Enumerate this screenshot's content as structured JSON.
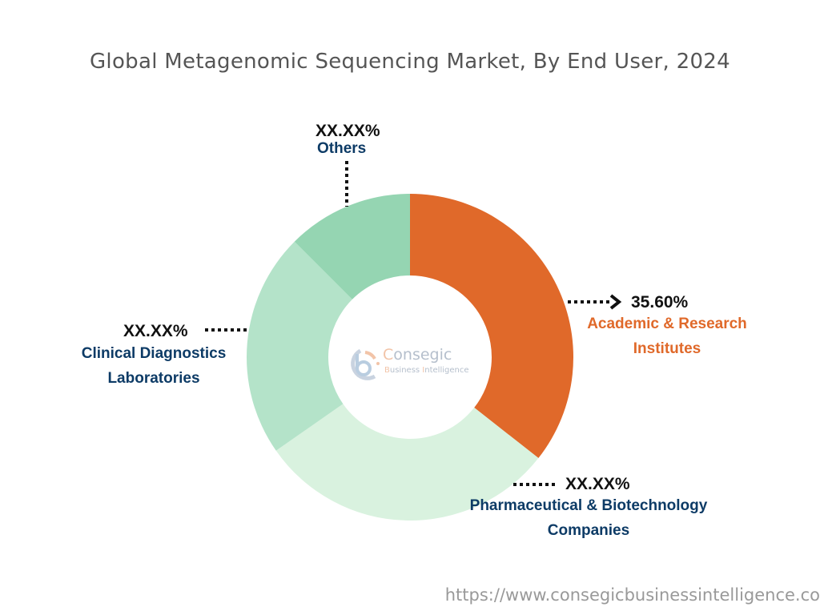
{
  "title": "Global Metagenomic Sequencing Market, By End User, 2024",
  "footer_url": "https://www.consegicbusinessintelligence.co",
  "logo": {
    "brand_first": "C",
    "brand_rest": "onsegic",
    "sub_b": "B",
    "sub_mid": "usiness ",
    "sub_i": "I",
    "sub_end": "ntelligence"
  },
  "colors": {
    "academic": "#e0692a",
    "pharma": "#d9f2df",
    "clinical": "#b4e3c9",
    "others": "#95d5b2",
    "label_navy": "#0d3b66",
    "label_orange": "#e0692a"
  },
  "labels": {
    "academic": {
      "pct": "35.60%",
      "line1": "Academic & Research",
      "line2": "Institutes"
    },
    "pharma": {
      "pct": "XX.XX%",
      "line1": "Pharmaceutical & Biotechnology",
      "line2": "Companies"
    },
    "clinical": {
      "pct": "XX.XX%",
      "line1": "Clinical Diagnostics",
      "line2": "Laboratories"
    },
    "others": {
      "pct": "XX.XX%",
      "line1": "Others"
    }
  },
  "chart_data": {
    "type": "pie",
    "subtype": "donut",
    "title": "Global Metagenomic Sequencing Market, By End User, 2024",
    "categories": [
      "Academic & Research Institutes",
      "Pharmaceutical & Biotechnology Companies",
      "Clinical Diagnostics Laboratories",
      "Others"
    ],
    "values": [
      35.6,
      29.7,
      22.2,
      12.5
    ],
    "value_labels": [
      "35.60%",
      "XX.XX%",
      "XX.XX%",
      "XX.XX%"
    ],
    "colors": [
      "#e0692a",
      "#d9f2df",
      "#b4e3c9",
      "#95d5b2"
    ],
    "start_angle_deg": 0,
    "direction": "clockwise",
    "note": "Only Academic & Research Institutes share is labeled (35.60%); other shares shown as XX.XX% and estimated from slice angles."
  }
}
